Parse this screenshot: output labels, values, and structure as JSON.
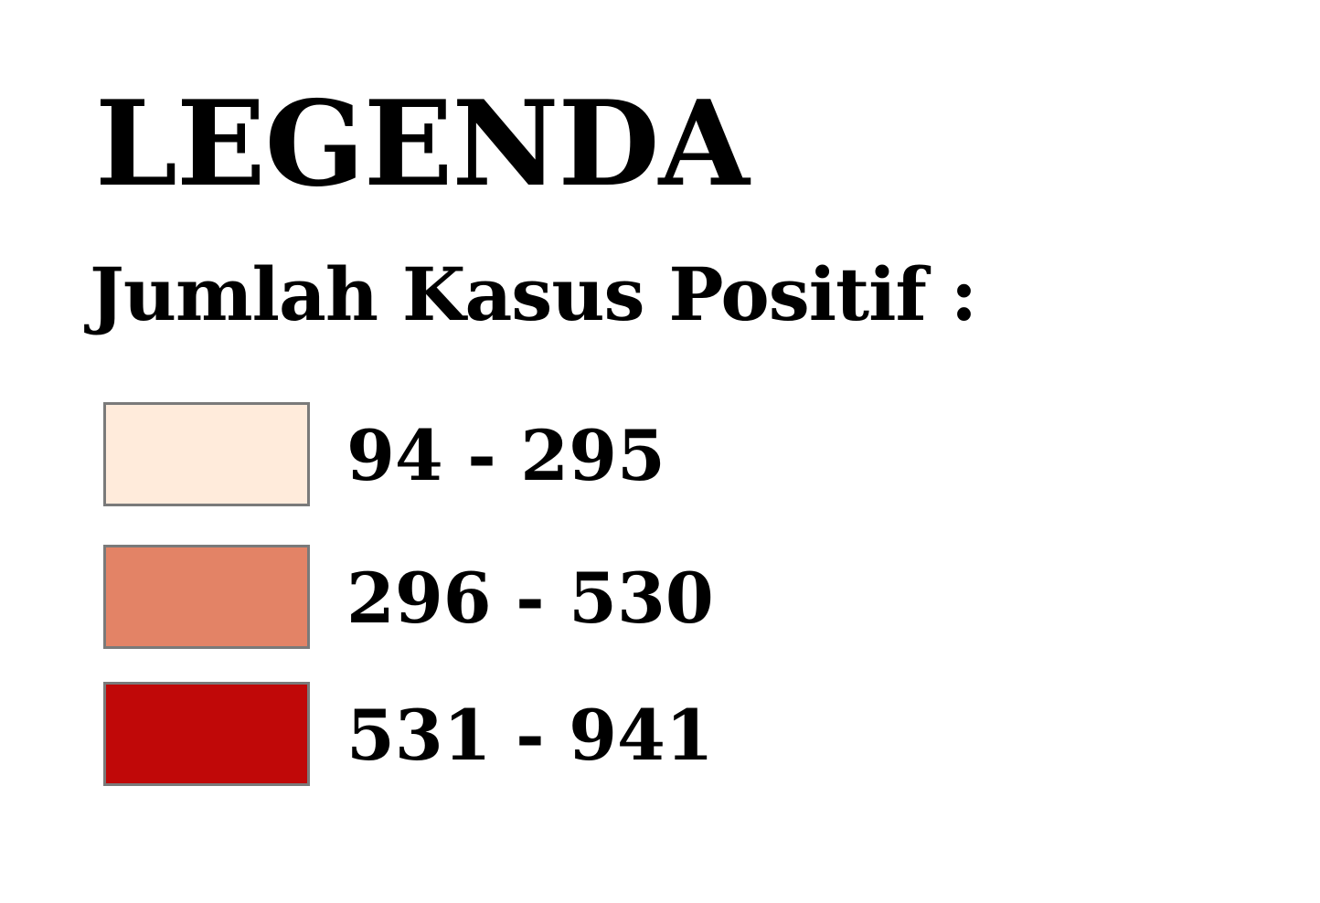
{
  "legend": {
    "title": "LEGENDA",
    "subtitle": "Jumlah Kasus Positif :",
    "items": [
      {
        "label": "94 - 295",
        "color": "#ffebdb",
        "min": 94,
        "max": 295
      },
      {
        "label": "296 - 530",
        "color": "#e38366",
        "min": 296,
        "max": 530
      },
      {
        "label": "531 - 941",
        "color": "#c00808",
        "min": 531,
        "max": 941
      }
    ]
  }
}
